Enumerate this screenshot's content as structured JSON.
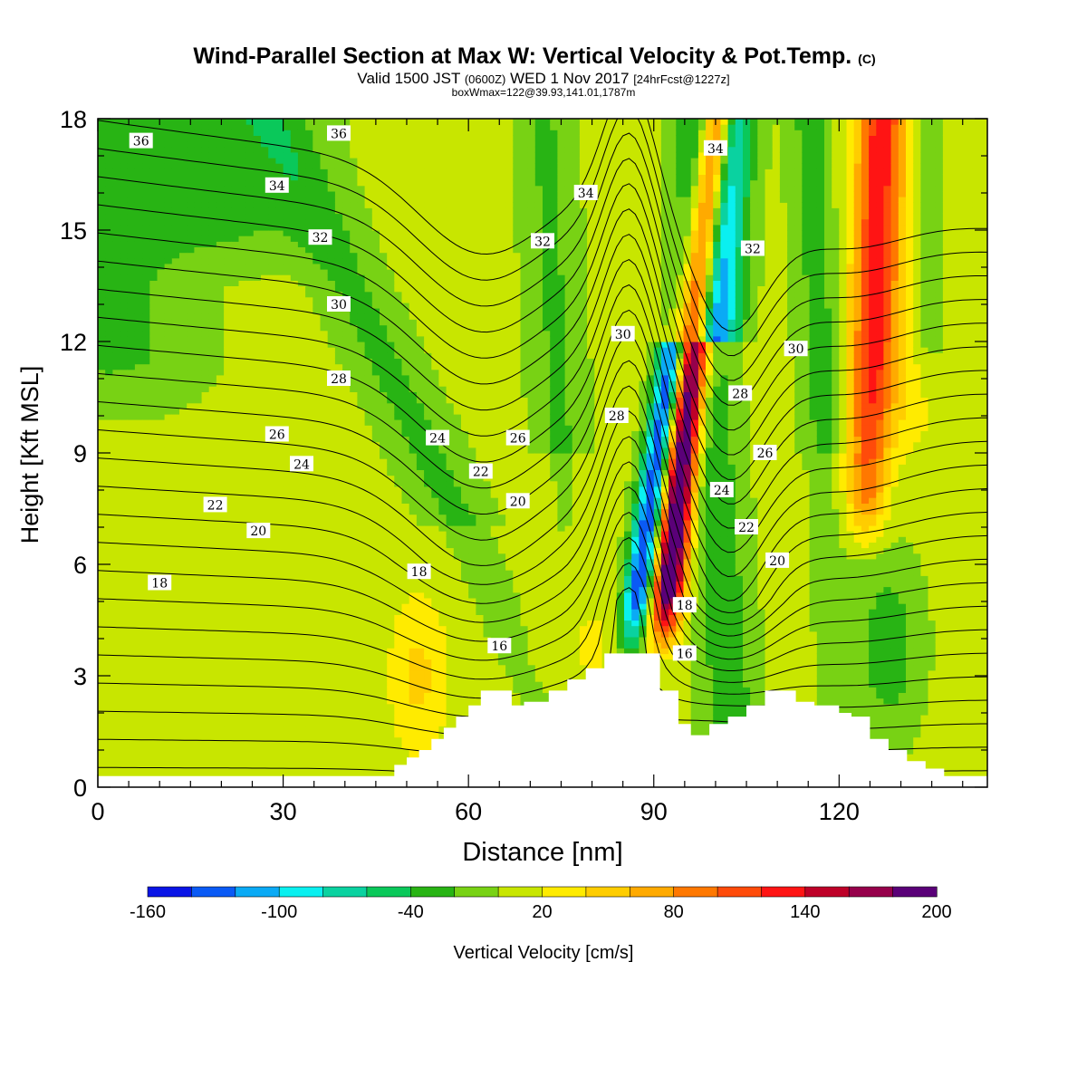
{
  "header": {
    "title": "Wind-Parallel Section at Max W: Vertical Velocity & Pot.Temp.",
    "copyright": "(C)",
    "valid_prefix": "Valid 1500 JST",
    "valid_utc": "(0600Z)",
    "valid_date": "WED 1 Nov 2017",
    "forecast": "[24hrFcst@1227z]",
    "box_info": "boxWmax=122@39.93,141.01,1787m"
  },
  "chart_data": {
    "type": "heatmap",
    "title": "Wind-Parallel Section at Max W: Vertical Velocity & Pot.Temp.",
    "xlabel": "Distance [nm]",
    "ylabel": "Height [Kft MSL]",
    "xlim": [
      0,
      144
    ],
    "ylim": [
      0,
      18
    ],
    "xticks": [
      0,
      30,
      60,
      90,
      120
    ],
    "yticks": [
      0,
      3,
      6,
      9,
      12,
      15,
      18
    ],
    "colorbar": {
      "label": "Vertical Velocity [cm/s]",
      "tick_labels": [
        "-160",
        "-100",
        "-40",
        "20",
        "80",
        "140",
        "200"
      ],
      "tick_values": [
        -160,
        -100,
        -40,
        20,
        80,
        140,
        200
      ],
      "min": -160,
      "max": 200,
      "colors": [
        "#0a14e6",
        "#0a5af5",
        "#0aaaf5",
        "#0af0f0",
        "#0ad2a0",
        "#0ac85a",
        "#28b414",
        "#78d214",
        "#c8e600",
        "#ffeb00",
        "#ffcd00",
        "#ffaa00",
        "#ff7800",
        "#ff4b0a",
        "#ff1414",
        "#be0028",
        "#96004b",
        "#5a0078"
      ]
    },
    "terrain_nm_kft": [
      [
        0,
        0.3
      ],
      [
        48,
        0.3
      ],
      [
        48,
        0.6
      ],
      [
        50,
        0.6
      ],
      [
        50,
        0.8
      ],
      [
        52,
        0.8
      ],
      [
        52,
        1.0
      ],
      [
        54,
        1.0
      ],
      [
        54,
        1.3
      ],
      [
        56,
        1.3
      ],
      [
        56,
        1.6
      ],
      [
        58,
        1.6
      ],
      [
        58,
        1.9
      ],
      [
        60,
        1.9
      ],
      [
        60,
        2.2
      ],
      [
        62,
        2.2
      ],
      [
        62,
        2.6
      ],
      [
        67,
        2.6
      ],
      [
        67,
        2.2
      ],
      [
        69,
        2.2
      ],
      [
        69,
        2.3
      ],
      [
        73,
        2.3
      ],
      [
        73,
        2.6
      ],
      [
        76,
        2.6
      ],
      [
        76,
        2.9
      ],
      [
        79,
        2.9
      ],
      [
        79,
        3.2
      ],
      [
        82,
        3.2
      ],
      [
        82,
        3.6
      ],
      [
        91,
        3.6
      ],
      [
        91,
        2.6
      ],
      [
        94,
        2.6
      ],
      [
        94,
        1.7
      ],
      [
        96,
        1.7
      ],
      [
        96,
        1.4
      ],
      [
        99,
        1.4
      ],
      [
        99,
        1.7
      ],
      [
        102,
        1.7
      ],
      [
        102,
        1.9
      ],
      [
        105,
        1.9
      ],
      [
        105,
        2.2
      ],
      [
        108,
        2.2
      ],
      [
        108,
        2.6
      ],
      [
        113,
        2.6
      ],
      [
        113,
        2.3
      ],
      [
        116,
        2.3
      ],
      [
        116,
        2.2
      ],
      [
        120,
        2.2
      ],
      [
        120,
        2.0
      ],
      [
        122,
        2.0
      ],
      [
        122,
        1.9
      ],
      [
        125,
        1.9
      ],
      [
        125,
        1.3
      ],
      [
        128,
        1.3
      ],
      [
        128,
        1.0
      ],
      [
        131,
        1.0
      ],
      [
        131,
        0.7
      ],
      [
        134,
        0.7
      ],
      [
        134,
        0.5
      ],
      [
        137,
        0.5
      ],
      [
        137,
        0.3
      ],
      [
        144,
        0.3
      ]
    ],
    "velocity_features": [
      {
        "kind": "updraft",
        "x_bottom_nm": 91.5,
        "x_top_nm": 94,
        "value_cm_s": 200
      },
      {
        "kind": "downdraft",
        "x_bottom_nm": 88,
        "x_top_nm": 99,
        "value_cm_s": -130
      },
      {
        "kind": "updraft",
        "x_bottom_nm": 124,
        "x_top_nm": 129,
        "value_cm_s": 80
      },
      {
        "kind": "updraft",
        "x_bottom_nm": 52,
        "x_top_nm": 52,
        "value_cm_s": 60
      }
    ],
    "theta_contour_levels": [
      14,
      15,
      16,
      17,
      18,
      19,
      20,
      21,
      22,
      23,
      24,
      25,
      26,
      27,
      28,
      29,
      30,
      31,
      32,
      33,
      34,
      35,
      36,
      37
    ],
    "theta_labels": [
      {
        "value": "36",
        "x": 7,
        "y": 17.4
      },
      {
        "value": "36",
        "x": 39,
        "y": 17.6
      },
      {
        "value": "34",
        "x": 29,
        "y": 16.2
      },
      {
        "value": "34",
        "x": 79,
        "y": 16.0
      },
      {
        "value": "34",
        "x": 100,
        "y": 17.2
      },
      {
        "value": "32",
        "x": 36,
        "y": 14.8
      },
      {
        "value": "32",
        "x": 72,
        "y": 14.7
      },
      {
        "value": "32",
        "x": 106,
        "y": 14.5
      },
      {
        "value": "30",
        "x": 39,
        "y": 13.0
      },
      {
        "value": "30",
        "x": 85,
        "y": 12.2
      },
      {
        "value": "30",
        "x": 113,
        "y": 11.8
      },
      {
        "value": "28",
        "x": 39,
        "y": 11.0
      },
      {
        "value": "28",
        "x": 84,
        "y": 10.0
      },
      {
        "value": "28",
        "x": 104,
        "y": 10.6
      },
      {
        "value": "26",
        "x": 29,
        "y": 9.5
      },
      {
        "value": "26",
        "x": 68,
        "y": 9.4
      },
      {
        "value": "26",
        "x": 108,
        "y": 9.0
      },
      {
        "value": "24",
        "x": 33,
        "y": 8.7
      },
      {
        "value": "24",
        "x": 55,
        "y": 9.4
      },
      {
        "value": "24",
        "x": 101,
        "y": 8.0
      },
      {
        "value": "22",
        "x": 19,
        "y": 7.6
      },
      {
        "value": "22",
        "x": 62,
        "y": 8.5
      },
      {
        "value": "22",
        "x": 105,
        "y": 7.0
      },
      {
        "value": "20",
        "x": 26,
        "y": 6.9
      },
      {
        "value": "20",
        "x": 68,
        "y": 7.7
      },
      {
        "value": "20",
        "x": 110,
        "y": 6.1
      },
      {
        "value": "18",
        "x": 10,
        "y": 5.5
      },
      {
        "value": "18",
        "x": 52,
        "y": 5.8
      },
      {
        "value": "18",
        "x": 95,
        "y": 4.9
      },
      {
        "value": "16",
        "x": 65,
        "y": 3.8
      },
      {
        "value": "16",
        "x": 95,
        "y": 3.6
      }
    ]
  }
}
